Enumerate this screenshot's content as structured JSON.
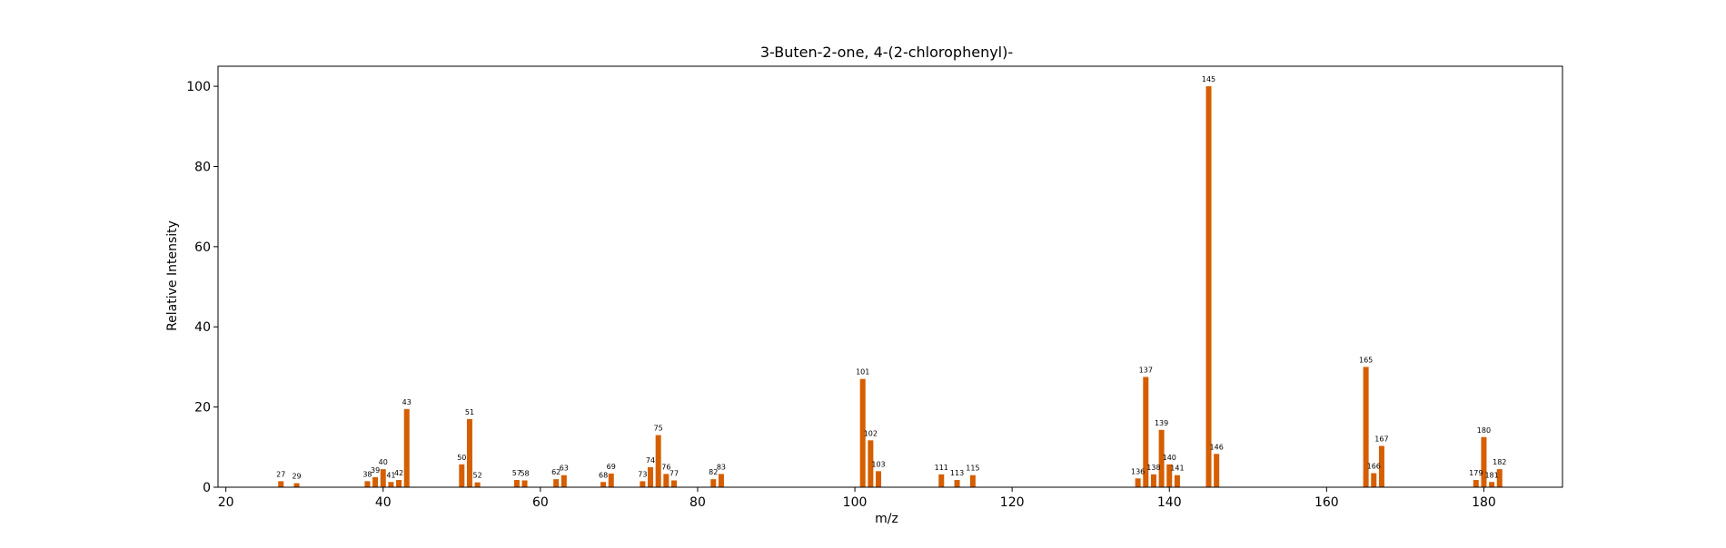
{
  "chart_data": {
    "type": "bar",
    "title": "3-Buten-2-one, 4-(2-chlorophenyl)-",
    "xlabel": "m/z",
    "ylabel": "Relative Intensity",
    "xlim": [
      19,
      190
    ],
    "ylim": [
      0,
      105
    ],
    "xticks": [
      20,
      40,
      60,
      80,
      100,
      120,
      140,
      160,
      180
    ],
    "yticks": [
      0,
      20,
      40,
      60,
      80,
      100
    ],
    "grid": false,
    "bar_color": "#d55e00",
    "series": [
      {
        "x": [
          27,
          29,
          38,
          39,
          40,
          41,
          42,
          43,
          50,
          51,
          52,
          57,
          58,
          62,
          63,
          68,
          69,
          73,
          74,
          75,
          76,
          77,
          82,
          83,
          101,
          102,
          103,
          111,
          113,
          115,
          136,
          137,
          138,
          139,
          140,
          141,
          145,
          146,
          165,
          166,
          167,
          179,
          180,
          181,
          182
        ],
        "y": [
          1.5,
          1.0,
          1.5,
          2.5,
          4.5,
          1.3,
          1.8,
          19.5,
          5.7,
          17.0,
          1.2,
          1.8,
          1.7,
          2.0,
          3.0,
          1.3,
          3.4,
          1.5,
          5.0,
          13.0,
          3.3,
          1.7,
          2.0,
          3.3,
          27.0,
          11.7,
          4.0,
          3.2,
          1.8,
          3.0,
          2.2,
          27.5,
          3.2,
          14.3,
          5.7,
          3.0,
          100.0,
          8.3,
          30.0,
          3.5,
          10.3,
          1.8,
          12.5,
          1.3,
          4.5
        ]
      }
    ]
  }
}
